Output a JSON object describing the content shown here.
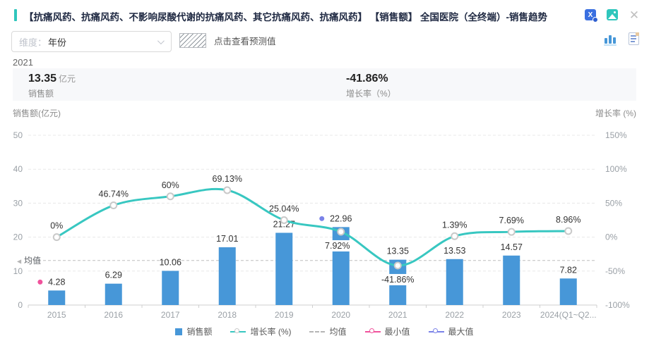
{
  "header": {
    "title": "【抗痛风药、抗痛风药、不影响尿酸代谢的抗痛风药、其它抗痛风药、抗痛风药】 【销售额】 全国医院（全终端）-销售趋势",
    "close_glyph": "✕",
    "excel_glyph": "X"
  },
  "toolbar": {
    "dimension_label": "维度：",
    "dimension_value": "年份",
    "forecast_hint": "点击查看预测值"
  },
  "hover_year": "2021",
  "stats": {
    "sales": {
      "value": "13.35",
      "unit": "亿元",
      "label": "销售额"
    },
    "growth": {
      "value": "-41.86%",
      "label": "增长率（%）"
    }
  },
  "chart_data": {
    "type": "bar",
    "categories": [
      "2015",
      "2016",
      "2017",
      "2018",
      "2019",
      "2020",
      "2021",
      "2022",
      "2023",
      "2024(Q1~Q2..."
    ],
    "series": [
      {
        "name": "销售额",
        "type": "bar",
        "color": "#4797d8",
        "values": [
          4.28,
          6.29,
          10.06,
          17.01,
          21.27,
          22.96,
          13.35,
          13.53,
          14.57,
          7.82
        ]
      },
      {
        "name": "增长率 (%)",
        "type": "line",
        "color": "#38c7c1",
        "values": [
          0,
          46.74,
          60,
          69.13,
          25.04,
          7.92,
          -41.86,
          1.39,
          7.69,
          8.96
        ]
      }
    ],
    "bar_labels": [
      "4.28",
      "6.29",
      "10.06",
      "17.01",
      "21.27",
      "22.96",
      "13.35",
      "13.53",
      "14.57",
      "7.82"
    ],
    "line_labels": [
      "0%",
      "46.74%",
      "60%",
      "69.13%",
      "25.04%",
      "7.92%",
      "-41.86%",
      "1.39%",
      "7.69%",
      "8.96%"
    ],
    "left_axis": {
      "title": "销售额(亿元)",
      "ticks": [
        "0",
        "10",
        "20",
        "30",
        "40",
        "50"
      ],
      "min": 0,
      "max": 50
    },
    "right_axis": {
      "title": "增长率 (%)",
      "ticks": [
        "-100%",
        "-50%",
        "0%",
        "50%",
        "100%",
        "150%"
      ],
      "min": -100,
      "max": 150
    },
    "mean": {
      "label": "均值",
      "value": 13.11,
      "pointer_glyph": "◀"
    },
    "min_marker": {
      "label": "最小值",
      "index": 0,
      "color": "#f0529c"
    },
    "max_marker": {
      "label": "最大值",
      "index": 5,
      "color": "#7a82e8"
    },
    "grid": true,
    "legend_position": "bottom"
  },
  "legend": [
    {
      "label": "销售额",
      "type": "bar",
      "color": "#4797d8"
    },
    {
      "label": "增长率 (%)",
      "type": "line",
      "color": "#38c7c1",
      "circle": "#c9c9c9"
    },
    {
      "label": "均值",
      "type": "dash",
      "color": "#b5b5b5"
    },
    {
      "label": "最小值",
      "type": "line",
      "color": "#f0529c",
      "circle": "#f0529c"
    },
    {
      "label": "最大值",
      "type": "line",
      "color": "#7a82e8",
      "circle": "#7a82e8"
    }
  ]
}
